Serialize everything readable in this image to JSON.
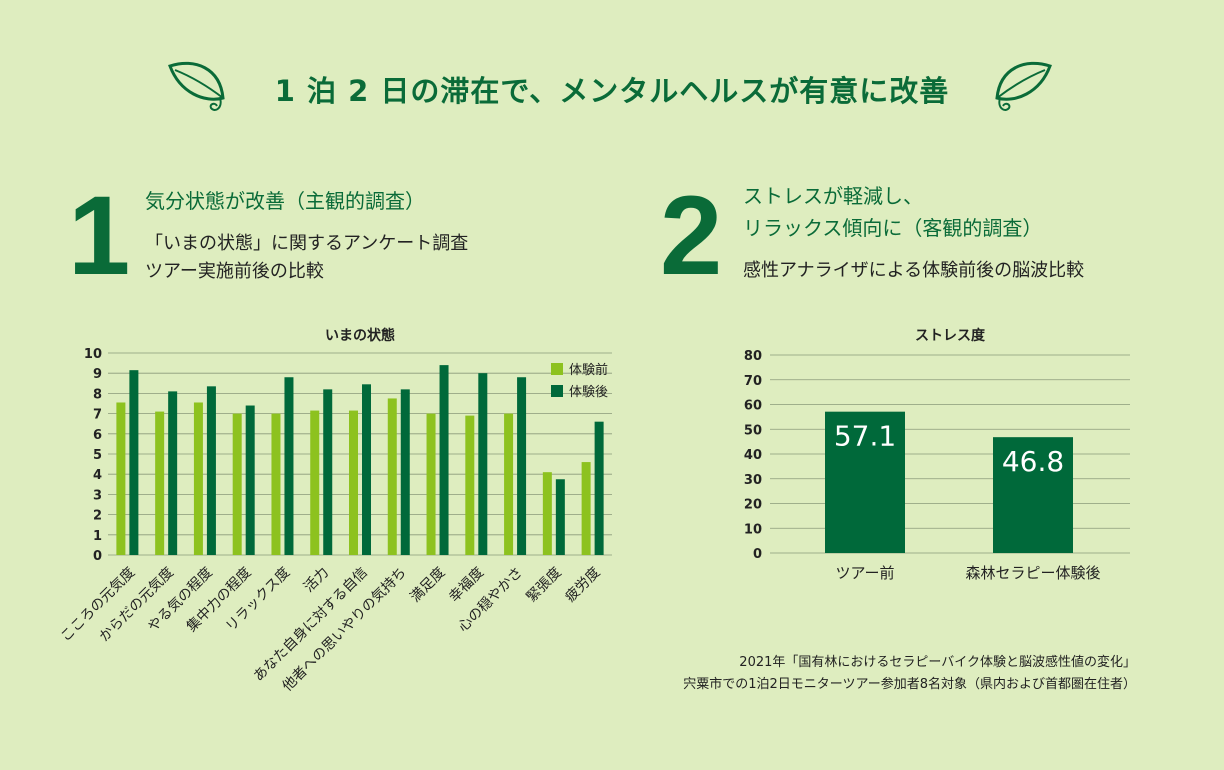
{
  "title": "1 泊 2 日の滞在で、メンタルヘルスが有意に改善",
  "section1": {
    "number": "1",
    "heading": "気分状態が改善（主観的調査）",
    "sub1": "「いまの状態」に関するアンケート調査",
    "sub2": "ツアー実施前後の比較"
  },
  "section2": {
    "number": "2",
    "heading1": "ストレスが軽減し、",
    "heading2": "リラックス傾向に（客観的調査）",
    "sub1": "感性アナライザによる体験前後の脳波比較"
  },
  "source": {
    "line1": "2021年「国有林におけるセラピーバイク体験と脳波感性値の変化」",
    "line2": "宍粟市での1泊2日モニターツアー参加者8名対象（県内および首都圏在住者）"
  },
  "colors": {
    "background": "#deedbf",
    "before": "#8dc21f",
    "after": "#00693a",
    "title": "#0a6b38"
  },
  "chart_data": [
    {
      "type": "bar",
      "title": "いまの状態",
      "ylim": [
        0,
        10
      ],
      "yticks": [
        0,
        1,
        2,
        3,
        4,
        5,
        6,
        7,
        8,
        9,
        10
      ],
      "grid": true,
      "legend": "top-right",
      "categories": [
        "こころの元気度",
        "からだの元気度",
        "やる気の程度",
        "集中力の程度",
        "リラックス度",
        "活力",
        "あなた自身に対する自信",
        "他者への思いやりの気持ち",
        "満足度",
        "幸福度",
        "心の穏やかさ",
        "緊張度",
        "疲労度"
      ],
      "series": [
        {
          "name": "体験前",
          "values": [
            7.55,
            7.1,
            7.55,
            7.0,
            7.0,
            7.15,
            7.15,
            7.75,
            7.0,
            6.9,
            7.0,
            4.1,
            4.6
          ]
        },
        {
          "name": "体験後",
          "values": [
            9.15,
            8.1,
            8.35,
            7.4,
            8.8,
            8.2,
            8.45,
            8.2,
            9.4,
            9.0,
            8.8,
            3.75,
            6.6
          ]
        }
      ]
    },
    {
      "type": "bar",
      "title": "ストレス度",
      "ylim": [
        0,
        80
      ],
      "yticks": [
        0,
        10,
        20,
        30,
        40,
        50,
        60,
        70,
        80
      ],
      "grid": true,
      "categories": [
        "ツアー前",
        "森林セラピー体験後"
      ],
      "values": [
        57.1,
        46.8
      ],
      "data_labels": [
        "57.1",
        "46.8"
      ]
    }
  ]
}
